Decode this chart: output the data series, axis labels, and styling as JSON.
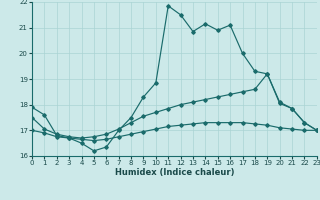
{
  "xlabel": "Humidex (Indice chaleur)",
  "xlim": [
    0,
    23
  ],
  "ylim": [
    16,
    22
  ],
  "yticks": [
    16,
    17,
    18,
    19,
    20,
    21,
    22
  ],
  "xticks": [
    0,
    1,
    2,
    3,
    4,
    5,
    6,
    7,
    8,
    9,
    10,
    11,
    12,
    13,
    14,
    15,
    16,
    17,
    18,
    19,
    20,
    21,
    22,
    23
  ],
  "bg_color": "#cce9e9",
  "grid_color": "#aad4d4",
  "line_color": "#1a6b6b",
  "series": [
    [
      17.9,
      17.6,
      16.8,
      16.7,
      16.5,
      16.2,
      16.35,
      17.0,
      17.5,
      18.3,
      18.85,
      21.85,
      21.5,
      20.85,
      21.15,
      20.9,
      21.1,
      20.0,
      19.3,
      19.2,
      18.1,
      17.85,
      17.3,
      17.0
    ],
    [
      17.5,
      17.05,
      16.85,
      16.75,
      16.7,
      16.75,
      16.85,
      17.05,
      17.3,
      17.55,
      17.7,
      17.85,
      18.0,
      18.1,
      18.2,
      18.3,
      18.4,
      18.5,
      18.6,
      19.2,
      18.05,
      17.85,
      17.3,
      17.0
    ],
    [
      17.0,
      16.9,
      16.75,
      16.7,
      16.65,
      16.6,
      16.65,
      16.75,
      16.85,
      16.95,
      17.05,
      17.15,
      17.2,
      17.25,
      17.3,
      17.3,
      17.3,
      17.3,
      17.25,
      17.2,
      17.1,
      17.05,
      17.0,
      17.0
    ]
  ]
}
